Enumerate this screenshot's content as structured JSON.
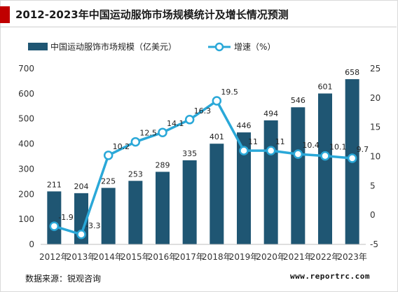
{
  "header": {
    "title": "2012-2023年中国运动服饰市场规模统计及增长情况预测"
  },
  "footer": {
    "source": "数据来源：锐观咨询",
    "website": "www.reportrc.com"
  },
  "colors": {
    "bar": "#1f5673",
    "line": "#2aa8d8",
    "accent": "#c00000"
  },
  "chart_data": {
    "type": "bar",
    "categories": [
      "2012年",
      "2013年",
      "2014年",
      "2015年",
      "2016年",
      "2017年",
      "2018年",
      "2019年",
      "2020年",
      "2021年",
      "2022年",
      "2023年"
    ],
    "series": [
      {
        "name": "中国运动服饰市场规模（亿美元）",
        "type": "bar",
        "axis": "left",
        "values": [
          211,
          204,
          225,
          253,
          289,
          335,
          401,
          446,
          494,
          546,
          601,
          658
        ],
        "labels": [
          "211",
          "204",
          "225",
          "253",
          "289",
          "335",
          "401",
          "446",
          "494",
          "546",
          "601",
          "658"
        ]
      },
      {
        "name": "增速（%）",
        "type": "line",
        "axis": "right",
        "values": [
          -1.9,
          -3.3,
          10.2,
          12.5,
          14.1,
          16.3,
          19.5,
          11,
          11,
          10.4,
          10.1,
          9.7
        ],
        "labels": [
          "-1.9",
          "-3.3",
          "10.2",
          "12.5",
          "14.1",
          "16.3",
          "19.5",
          "11",
          "11",
          "10.4",
          "10.1",
          "9.7"
        ]
      }
    ],
    "y_left": {
      "min": 0,
      "max": 700,
      "ticks": [
        "0",
        "100",
        "200",
        "300",
        "400",
        "500",
        "600",
        "700"
      ],
      "tick_values": [
        0,
        100,
        200,
        300,
        400,
        500,
        600,
        700
      ]
    },
    "y_right": {
      "min": -5,
      "max": 25,
      "ticks": [
        "-5",
        "0",
        "5",
        "10",
        "15",
        "20",
        "25"
      ],
      "tick_values": [
        -5,
        0,
        5,
        10,
        15,
        20,
        25
      ]
    },
    "grid": false,
    "legend_position": "top-left"
  }
}
